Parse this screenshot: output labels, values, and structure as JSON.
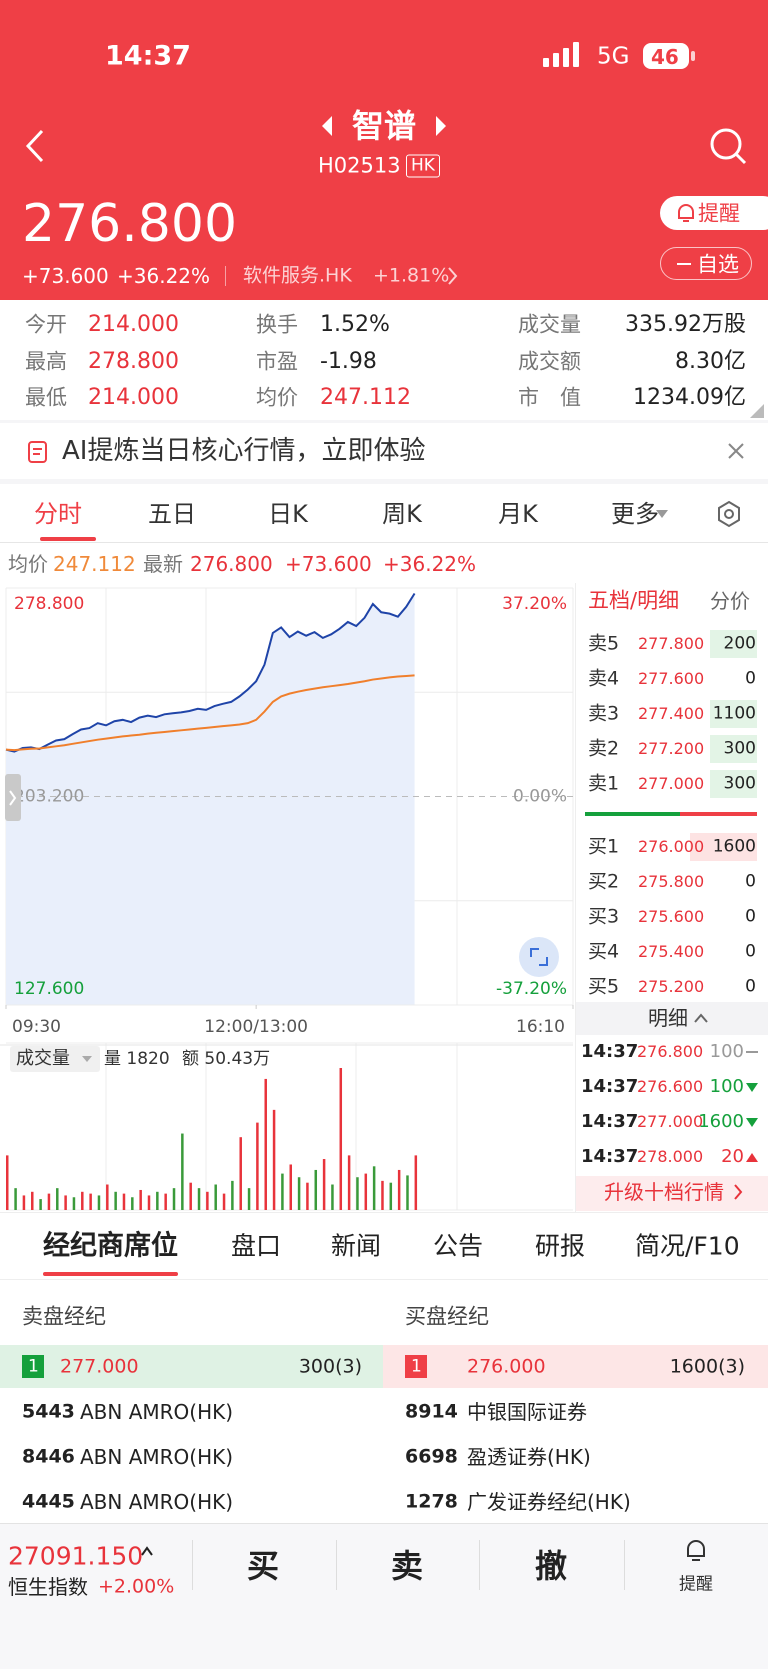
{
  "status_bar": {
    "time": "14:37",
    "network": "5G",
    "battery": "46"
  },
  "header": {
    "title": "智谱",
    "code": "H02513",
    "market": "HK",
    "price": "276.800",
    "change": "+73.600",
    "change_pct": "+36.22%",
    "sector": "软件服务.HK",
    "sector_change": "+1.81%",
    "alert_button": "提醒",
    "watchlist_button": "自选"
  },
  "stats": [
    {
      "label": "今开",
      "value": "214.000",
      "color": "#e8333b"
    },
    {
      "label": "换手",
      "value": "1.52%",
      "color": "#222222"
    },
    {
      "label": "成交量",
      "value": "335.92万股",
      "color": "#222222"
    },
    {
      "label": "最高",
      "value": "278.800",
      "color": "#e8333b"
    },
    {
      "label": "市盈",
      "value": "-1.98",
      "color": "#222222"
    },
    {
      "label": "成交额",
      "value": "8.30亿",
      "color": "#222222"
    },
    {
      "label": "最低",
      "value": "214.000",
      "color": "#e8333b"
    },
    {
      "label": "均价",
      "value": "247.112",
      "color": "#e8333b"
    },
    {
      "label": "市　值",
      "value": "1234.09亿",
      "color": "#222222"
    }
  ],
  "banner": "AI提炼当日核心行情，立即体验",
  "chart_tabs": [
    "分时",
    "五日",
    "日K",
    "周K",
    "月K",
    "更多"
  ],
  "quote_line": {
    "avg_label": "均价",
    "avg": "247.112",
    "last_label": "最新",
    "last": "276.800",
    "change": "+73.600",
    "change_pct": "+36.22%"
  },
  "chart_data": [
    {
      "type": "line",
      "x": [
        0,
        5,
        10,
        15,
        20,
        25,
        30,
        35,
        40,
        45,
        50,
        55,
        60,
        65,
        70,
        75,
        80,
        85,
        90,
        95,
        100,
        105,
        110,
        115,
        120,
        125,
        130,
        135,
        140,
        145,
        150,
        155,
        160,
        165,
        170,
        175,
        180,
        185,
        190,
        195,
        200,
        205,
        210,
        215,
        220,
        225,
        230,
        235,
        240,
        245
      ],
      "xlim": [
        0,
        340
      ],
      "xticks": [
        {
          "value": 0,
          "label": "09:30"
        },
        {
          "value": 150,
          "label": "12:00/13:00"
        },
        {
          "value": 340,
          "label": "16:10"
        }
      ],
      "ylim": [
        127.6,
        278.8
      ],
      "yticks": [
        {
          "value": 278.8,
          "label": "278.800"
        },
        {
          "value": 203.2,
          "label": "203.200"
        },
        {
          "value": 127.6,
          "label": "127.600"
        }
      ],
      "y2lim": [
        -37.2,
        37.2
      ],
      "y2ticks": [
        {
          "value": 37.2,
          "label": "37.20%"
        },
        {
          "value": 0,
          "label": "0.00%"
        },
        {
          "value": -37.2,
          "label": "-37.20%"
        }
      ],
      "area_color": "#e9effb",
      "series": [
        {
          "color": "#1f44a8",
          "values": [
            220.2,
            219.5,
            220.8,
            221.0,
            220.4,
            222.0,
            223.5,
            224.0,
            225.8,
            227.5,
            228.0,
            229.8,
            229.0,
            230.5,
            231.0,
            230.2,
            231.8,
            232.5,
            232.0,
            233.0,
            233.4,
            233.7,
            234.2,
            235.0,
            234.6,
            236.0,
            236.8,
            237.5,
            239.5,
            242.0,
            245.0,
            251.0,
            262.5,
            264.5,
            261.0,
            263.0,
            261.5,
            262.8,
            260.7,
            262.0,
            264.0,
            266.5,
            265.0,
            268.0,
            273.0,
            270.0,
            269.5,
            268.4,
            272.0,
            276.8
          ]
        },
        {
          "color": "#f07f2c",
          "values": [
            220.2,
            220.0,
            220.3,
            220.5,
            220.6,
            221.0,
            221.4,
            221.8,
            222.3,
            222.8,
            223.3,
            223.8,
            224.2,
            224.6,
            225.0,
            225.3,
            225.6,
            226.0,
            226.3,
            226.6,
            226.9,
            227.2,
            227.5,
            227.8,
            228.1,
            228.4,
            228.7,
            229.0,
            229.3,
            229.8,
            231.0,
            234.0,
            237.5,
            239.5,
            240.5,
            241.2,
            241.8,
            242.3,
            242.8,
            243.2,
            243.6,
            244.0,
            244.5,
            245.0,
            245.6,
            246.0,
            246.4,
            246.7,
            246.9,
            247.1
          ]
        }
      ]
    },
    {
      "type": "bar",
      "title": "成交量",
      "stats": [
        "量 1820",
        "额 50.43万"
      ],
      "x": [
        0,
        5,
        10,
        15,
        20,
        25,
        30,
        35,
        40,
        45,
        50,
        55,
        60,
        65,
        70,
        75,
        80,
        85,
        90,
        95,
        100,
        105,
        110,
        115,
        120,
        125,
        130,
        135,
        140,
        145,
        150,
        155,
        160,
        165,
        170,
        175,
        180,
        185,
        190,
        195,
        200,
        205,
        210,
        215,
        220,
        225,
        230,
        235,
        240,
        245
      ],
      "xlim": [
        0,
        340
      ],
      "values": [
        30,
        12,
        8,
        10,
        6,
        9,
        12,
        8,
        7,
        10,
        9,
        8,
        14,
        10,
        9,
        7,
        11,
        8,
        10,
        9,
        12,
        42,
        15,
        12,
        10,
        14,
        9,
        16,
        40,
        12,
        48,
        72,
        55,
        20,
        25,
        18,
        15,
        22,
        28,
        14,
        78,
        30,
        18,
        20,
        24,
        16,
        15,
        22,
        19,
        30
      ],
      "colors": [
        "#e8333b",
        "#3a9a3a",
        "#e8333b",
        "#e8333b",
        "#3a9a3a",
        "#e8333b",
        "#3a9a3a",
        "#e8333b",
        "#3a9a3a",
        "#e8333b",
        "#e8333b",
        "#3a9a3a",
        "#e8333b",
        "#3a9a3a",
        "#e8333b",
        "#3a9a3a",
        "#e8333b",
        "#e8333b",
        "#3a9a3a",
        "#e8333b",
        "#3a9a3a",
        "#3a9a3a",
        "#e8333b",
        "#3a9a3a",
        "#e8333b",
        "#3a9a3a",
        "#e8333b",
        "#3a9a3a",
        "#e8333b",
        "#3a9a3a",
        "#e8333b",
        "#e8333b",
        "#e8333b",
        "#3a9a3a",
        "#e8333b",
        "#3a9a3a",
        "#e8333b",
        "#3a9a3a",
        "#e8333b",
        "#3a9a3a",
        "#e8333b",
        "#e8333b",
        "#3a9a3a",
        "#e8333b",
        "#3a9a3a",
        "#e8333b",
        "#3a9a3a",
        "#e8333b",
        "#3a9a3a",
        "#e8333b"
      ]
    }
  ],
  "order_book": {
    "title": "五档/明细",
    "tab": "分价",
    "asks": [
      {
        "label": "卖5",
        "price": "277.800",
        "qty": "200"
      },
      {
        "label": "卖4",
        "price": "277.600",
        "qty": "0"
      },
      {
        "label": "卖3",
        "price": "277.400",
        "qty": "1100"
      },
      {
        "label": "卖2",
        "price": "277.200",
        "qty": "300"
      },
      {
        "label": "卖1",
        "price": "277.000",
        "qty": "300"
      }
    ],
    "bids": [
      {
        "label": "买1",
        "price": "276.000",
        "qty": "1600"
      },
      {
        "label": "买2",
        "price": "275.800",
        "qty": "0"
      },
      {
        "label": "买3",
        "price": "275.600",
        "qty": "0"
      },
      {
        "label": "买4",
        "price": "275.400",
        "qty": "0"
      },
      {
        "label": "买5",
        "price": "275.200",
        "qty": "0"
      }
    ],
    "detail_title": "明细",
    "trades": [
      {
        "time": "14:37",
        "price": "276.800",
        "qty": "100",
        "color": "#999999"
      },
      {
        "time": "14:37",
        "price": "276.600",
        "qty": "100",
        "color": "#15a03c"
      },
      {
        "time": "14:37",
        "price": "277.000",
        "qty": "1600",
        "color": "#15a03c"
      },
      {
        "time": "14:37",
        "price": "278.000",
        "qty": "20",
        "color": "#e8333b"
      }
    ],
    "upgrade": "升级十档行情"
  },
  "bottom_tabs": [
    "经纪商席位",
    "盘口",
    "新闻",
    "公告",
    "研报",
    "简况/F10"
  ],
  "brokers": {
    "sell_title": "卖盘经纪",
    "buy_title": "买盘经纪",
    "sell_top": {
      "rank": "1",
      "price": "277.000",
      "qty": "300(3)"
    },
    "sell_rows": [
      {
        "code": "5443",
        "name": "ABN AMRO(HK)"
      },
      {
        "code": "8446",
        "name": "ABN AMRO(HK)"
      },
      {
        "code": "4445",
        "name": "ABN AMRO(HK)"
      }
    ],
    "buy_top": {
      "rank": "1",
      "price": "276.000",
      "qty": "1600(3)"
    },
    "buy_rows": [
      {
        "code": "8914",
        "name": "中银国际证券"
      },
      {
        "code": "6698",
        "name": "盈透证券(HK)"
      },
      {
        "code": "1278",
        "name": "广发证券经纪(HK)"
      }
    ]
  },
  "footer": {
    "index_value": "27091.150",
    "index_name": "恒生指数",
    "index_change": "+2.00%",
    "buy": "买",
    "sell": "卖",
    "cancel": "撤",
    "alert": "提醒"
  }
}
